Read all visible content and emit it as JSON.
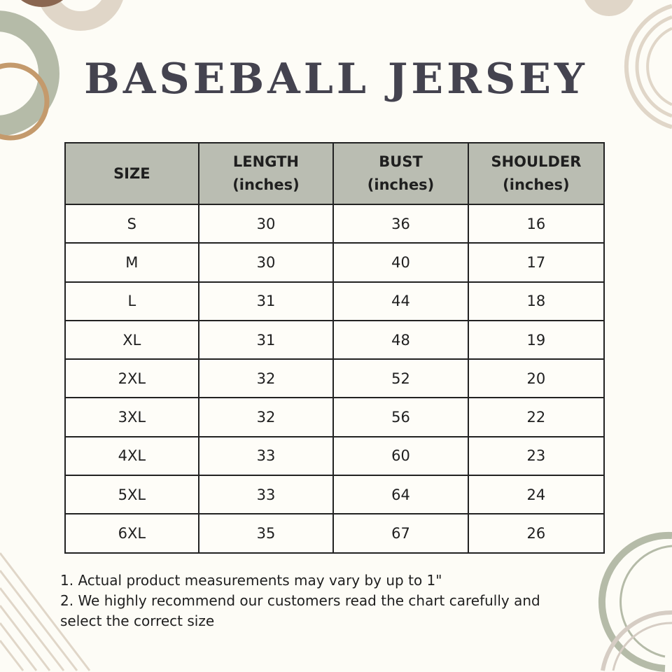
{
  "title": "BASEBALL JERSEY",
  "table": {
    "headers": [
      [
        "SIZE",
        ""
      ],
      [
        "LENGTH",
        "(inches)"
      ],
      [
        "BUST",
        "(inches)"
      ],
      [
        "SHOULDER",
        "(inches)"
      ]
    ],
    "rows": [
      [
        "S",
        "30",
        "36",
        "16"
      ],
      [
        "M",
        "30",
        "40",
        "17"
      ],
      [
        "L",
        "31",
        "44",
        "18"
      ],
      [
        "XL",
        "31",
        "48",
        "19"
      ],
      [
        "2XL",
        "32",
        "52",
        "20"
      ],
      [
        "3XL",
        "32",
        "56",
        "22"
      ],
      [
        "4XL",
        "33",
        "60",
        "23"
      ],
      [
        "5XL",
        "33",
        "64",
        "24"
      ],
      [
        "6XL",
        "35",
        "67",
        "26"
      ]
    ]
  },
  "notes": [
    "1. Actual product measurements may vary by up to 1\"",
    "2. We highly recommend our customers read the chart carefully and",
    "select the correct size"
  ],
  "colors": {
    "background": "#fdfcf6",
    "title": "#44434f",
    "header": "#babdb2",
    "sage": "#b5bba8",
    "tan": "#c49a6c",
    "beige": "#e0d6c8",
    "brown": "#8a6650"
  }
}
